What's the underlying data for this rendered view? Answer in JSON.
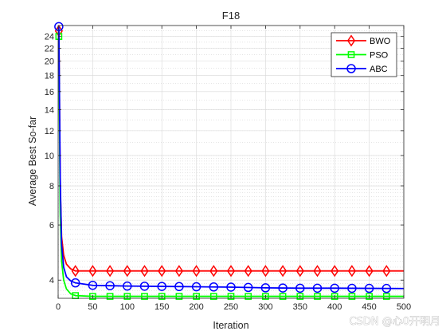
{
  "chart_data": {
    "type": "line",
    "title": "F18",
    "xlabel": "Iteration",
    "ylabel": "Average Best So-far",
    "yscale": "log",
    "xlim": [
      0,
      500
    ],
    "ylim": [
      3.5,
      26
    ],
    "xticks": [
      0,
      50,
      100,
      150,
      200,
      250,
      300,
      350,
      400,
      450,
      500
    ],
    "yticks": [
      4,
      6,
      8,
      10,
      12,
      14,
      16,
      18,
      20,
      22,
      24
    ],
    "grid": true,
    "legend_position": "top-right",
    "series": [
      {
        "name": "BWO",
        "color": "#ff0000",
        "marker": "diamond",
        "x": [
          1,
          2,
          3,
          5,
          8,
          12,
          18,
          25,
          50,
          100,
          200,
          300,
          400,
          500
        ],
        "y": [
          25.0,
          14.0,
          8.0,
          5.5,
          4.8,
          4.5,
          4.35,
          4.28,
          4.28,
          4.28,
          4.28,
          4.28,
          4.28,
          4.28
        ]
      },
      {
        "name": "PSO",
        "color": "#00ff00",
        "marker": "square",
        "x": [
          1,
          2,
          3,
          5,
          8,
          12,
          18,
          25,
          50,
          100,
          200,
          300,
          400,
          500
        ],
        "y": [
          24.0,
          12.0,
          6.5,
          4.6,
          4.0,
          3.75,
          3.62,
          3.57,
          3.55,
          3.55,
          3.55,
          3.55,
          3.55,
          3.55
        ]
      },
      {
        "name": "ABC",
        "color": "#0000ff",
        "marker": "circle",
        "x": [
          1,
          2,
          3,
          5,
          8,
          12,
          18,
          25,
          50,
          75,
          100,
          150,
          200,
          250,
          300,
          350,
          400,
          500
        ],
        "y": [
          25.8,
          15.0,
          8.5,
          5.2,
          4.4,
          4.1,
          3.98,
          3.92,
          3.85,
          3.84,
          3.83,
          3.82,
          3.81,
          3.8,
          3.78,
          3.77,
          3.77,
          3.76
        ]
      }
    ]
  },
  "watermark": "CSDN @心0开明月"
}
